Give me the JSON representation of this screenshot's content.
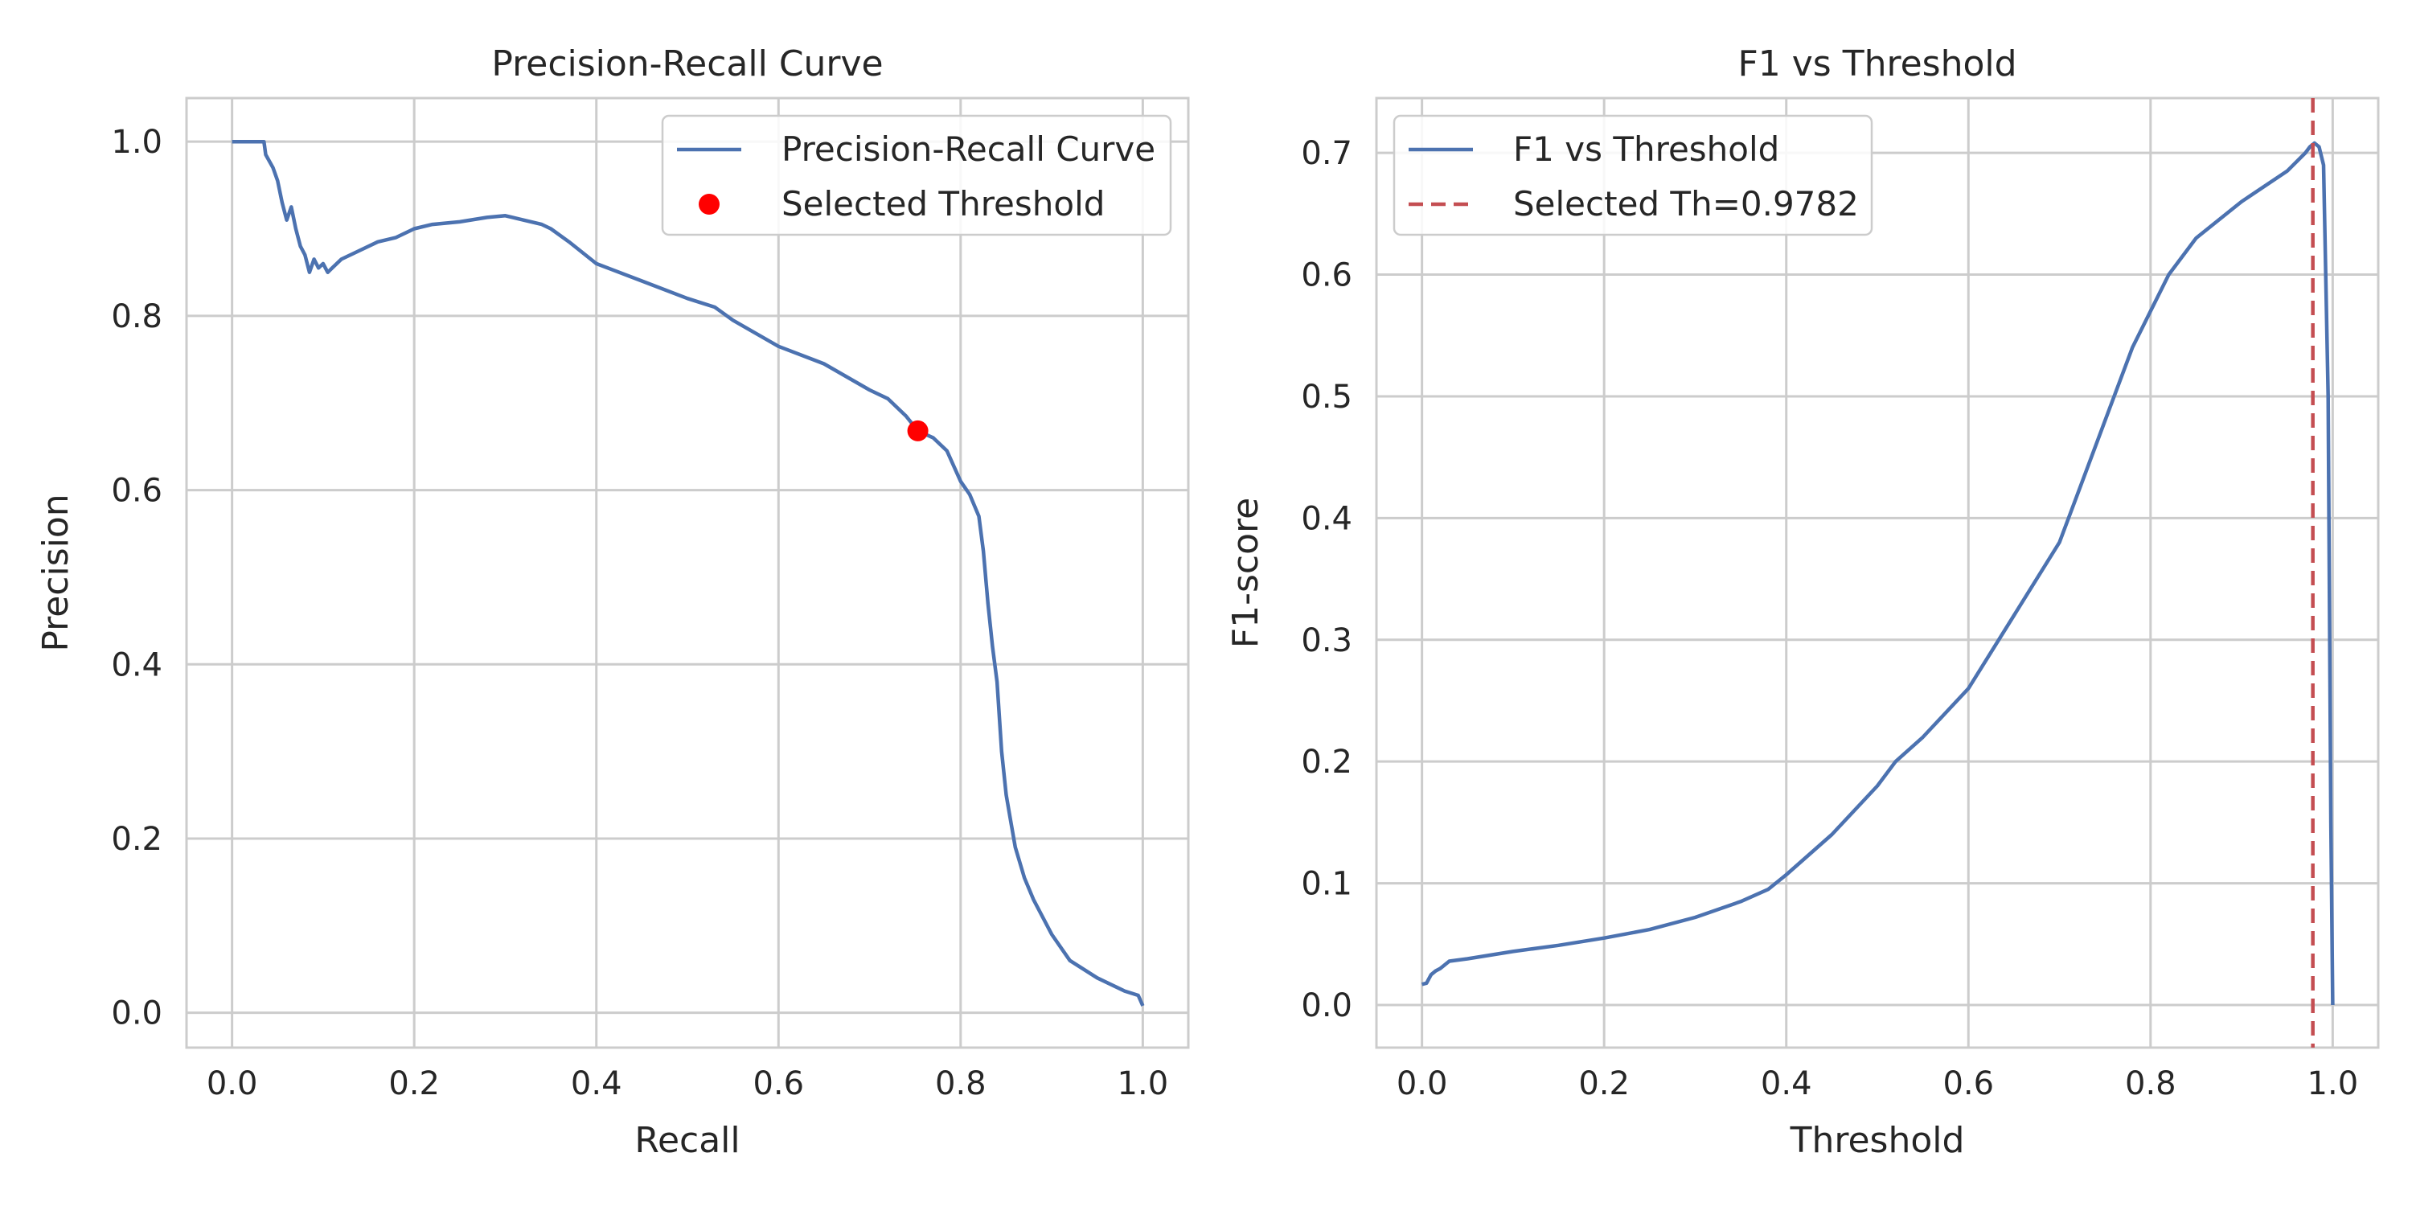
{
  "chart_data": [
    {
      "type": "line",
      "title": "Precision-Recall Curve",
      "xlabel": "Recall",
      "ylabel": "Precision",
      "xlim": [
        -0.05,
        1.05
      ],
      "ylim": [
        -0.04,
        1.05
      ],
      "xticks": [
        "0.0",
        "0.2",
        "0.4",
        "0.6",
        "0.8",
        "1.0"
      ],
      "yticks": [
        "0.0",
        "0.2",
        "0.4",
        "0.6",
        "0.8",
        "1.0"
      ],
      "grid": true,
      "legend_position": "top-right",
      "series": [
        {
          "name": "Precision-Recall Curve",
          "color": "#4c72b0",
          "x": [
            0.0,
            0.035,
            0.037,
            0.045,
            0.05,
            0.055,
            0.06,
            0.065,
            0.07,
            0.075,
            0.08,
            0.085,
            0.09,
            0.095,
            0.1,
            0.105,
            0.11,
            0.12,
            0.14,
            0.16,
            0.18,
            0.2,
            0.22,
            0.25,
            0.28,
            0.3,
            0.32,
            0.34,
            0.35,
            0.37,
            0.4,
            0.45,
            0.5,
            0.53,
            0.55,
            0.6,
            0.65,
            0.7,
            0.72,
            0.74,
            0.753,
            0.77,
            0.785,
            0.8,
            0.81,
            0.82,
            0.825,
            0.83,
            0.835,
            0.84,
            0.845,
            0.85,
            0.855,
            0.86,
            0.87,
            0.88,
            0.9,
            0.92,
            0.95,
            0.98,
            0.995,
            1.0
          ],
          "y": [
            1.0,
            1.0,
            0.985,
            0.97,
            0.955,
            0.93,
            0.91,
            0.925,
            0.9,
            0.88,
            0.87,
            0.85,
            0.865,
            0.855,
            0.86,
            0.85,
            0.855,
            0.865,
            0.875,
            0.885,
            0.89,
            0.9,
            0.905,
            0.908,
            0.913,
            0.915,
            0.91,
            0.905,
            0.9,
            0.885,
            0.86,
            0.84,
            0.82,
            0.81,
            0.795,
            0.765,
            0.745,
            0.715,
            0.705,
            0.685,
            0.668,
            0.66,
            0.645,
            0.61,
            0.595,
            0.57,
            0.53,
            0.47,
            0.42,
            0.38,
            0.3,
            0.25,
            0.22,
            0.19,
            0.155,
            0.13,
            0.09,
            0.06,
            0.04,
            0.025,
            0.02,
            0.008
          ]
        }
      ],
      "selected_point": {
        "name": "Selected Threshold",
        "x": 0.753,
        "y": 0.668,
        "color": "#ff0000"
      }
    },
    {
      "type": "line",
      "title": "F1 vs Threshold",
      "xlabel": "Threshold",
      "ylabel": "F1-score",
      "xlim": [
        -0.05,
        1.05
      ],
      "ylim": [
        -0.035,
        0.745
      ],
      "xticks": [
        "0.0",
        "0.2",
        "0.4",
        "0.6",
        "0.8",
        "1.0"
      ],
      "yticks": [
        "0.0",
        "0.1",
        "0.2",
        "0.3",
        "0.4",
        "0.5",
        "0.6",
        "0.7"
      ],
      "grid": true,
      "legend_position": "top-left",
      "series": [
        {
          "name": "F1 vs Threshold",
          "color": "#4c72b0",
          "x": [
            0.0,
            0.005,
            0.01,
            0.015,
            0.02,
            0.03,
            0.04,
            0.05,
            0.1,
            0.15,
            0.2,
            0.25,
            0.3,
            0.35,
            0.38,
            0.4,
            0.45,
            0.5,
            0.52,
            0.55,
            0.6,
            0.65,
            0.7,
            0.72,
            0.75,
            0.78,
            0.8,
            0.82,
            0.85,
            0.9,
            0.95,
            0.97,
            0.975,
            0.98,
            0.985,
            0.99,
            0.995,
            0.998,
            1.0
          ],
          "y": [
            0.017,
            0.018,
            0.025,
            0.028,
            0.03,
            0.036,
            0.037,
            0.038,
            0.044,
            0.049,
            0.055,
            0.062,
            0.072,
            0.085,
            0.095,
            0.107,
            0.14,
            0.18,
            0.2,
            0.22,
            0.26,
            0.32,
            0.38,
            0.42,
            0.48,
            0.54,
            0.57,
            0.6,
            0.63,
            0.66,
            0.685,
            0.7,
            0.705,
            0.708,
            0.705,
            0.69,
            0.5,
            0.15,
            0.0
          ]
        }
      ],
      "reference_line": {
        "name": "Selected Th=0.9782",
        "x": 0.9782,
        "color": "#c44e52",
        "style": "dashed"
      }
    }
  ]
}
